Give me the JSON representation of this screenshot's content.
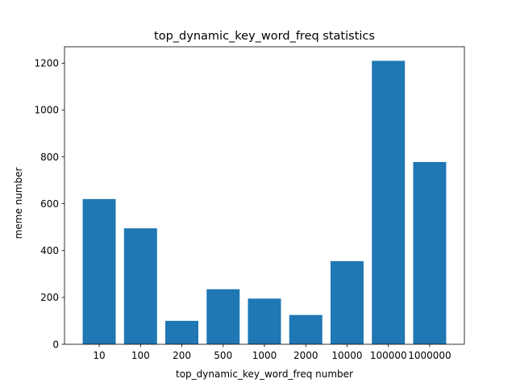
{
  "chart_data": {
    "type": "bar",
    "title": "top_dynamic_key_word_freq statistics",
    "xlabel": "top_dynamic_key_word_freq number",
    "ylabel": "meme number",
    "categories": [
      "10",
      "100",
      "200",
      "500",
      "1000",
      "2000",
      "10000",
      "100000",
      "1000000"
    ],
    "values": [
      620,
      495,
      100,
      235,
      195,
      125,
      355,
      1210,
      778
    ],
    "ylim": [
      0,
      1270
    ],
    "yticks": [
      0,
      200,
      400,
      600,
      800,
      1000,
      1200
    ],
    "grid": false,
    "legend": "none",
    "bar_color": "#1f77b4"
  }
}
